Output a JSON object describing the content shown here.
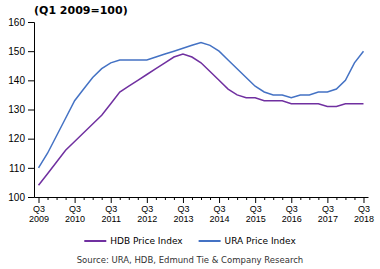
{
  "chart_data": {
    "type": "line",
    "title": "(Q1 2009=100)",
    "source": "Source: URA, HDB, Edmund Tie & Company Research",
    "categories": [
      "Q3\n2009",
      null,
      null,
      null,
      "Q3\n2010",
      null,
      null,
      null,
      "Q3\n2011",
      null,
      null,
      null,
      "Q3\n2012",
      null,
      null,
      null,
      "Q3\n2013",
      null,
      null,
      null,
      "Q3\n2014",
      null,
      null,
      null,
      "Q3\n2015",
      null,
      null,
      null,
      "Q3\n2016",
      null,
      null,
      null,
      "Q3\n2017",
      null,
      null,
      null,
      "Q3\n2018"
    ],
    "series": [
      {
        "name": "HDB Price Index",
        "color": "#7030a0",
        "values": [
          104,
          108,
          112,
          116,
          119,
          122,
          125,
          128,
          132,
          136,
          138,
          140,
          142,
          144,
          146,
          148,
          149,
          148,
          146,
          143,
          140,
          137,
          135,
          134,
          134,
          133,
          133,
          133,
          132,
          132,
          132,
          132,
          131,
          131,
          132,
          132,
          132
        ]
      },
      {
        "name": "URA Price Index",
        "color": "#4472c4",
        "values": [
          110,
          115,
          121,
          127,
          133,
          137,
          141,
          144,
          146,
          147,
          147,
          147,
          147,
          148,
          149,
          150,
          151,
          152,
          153,
          152,
          150,
          147,
          144,
          141,
          138,
          136,
          135,
          135,
          134,
          135,
          135,
          136,
          136,
          137,
          140,
          146,
          150
        ]
      }
    ],
    "ylim": [
      100,
      160
    ],
    "yticks": [
      100,
      110,
      120,
      130,
      140,
      150,
      160
    ],
    "grid": false,
    "legend": "bottom"
  }
}
